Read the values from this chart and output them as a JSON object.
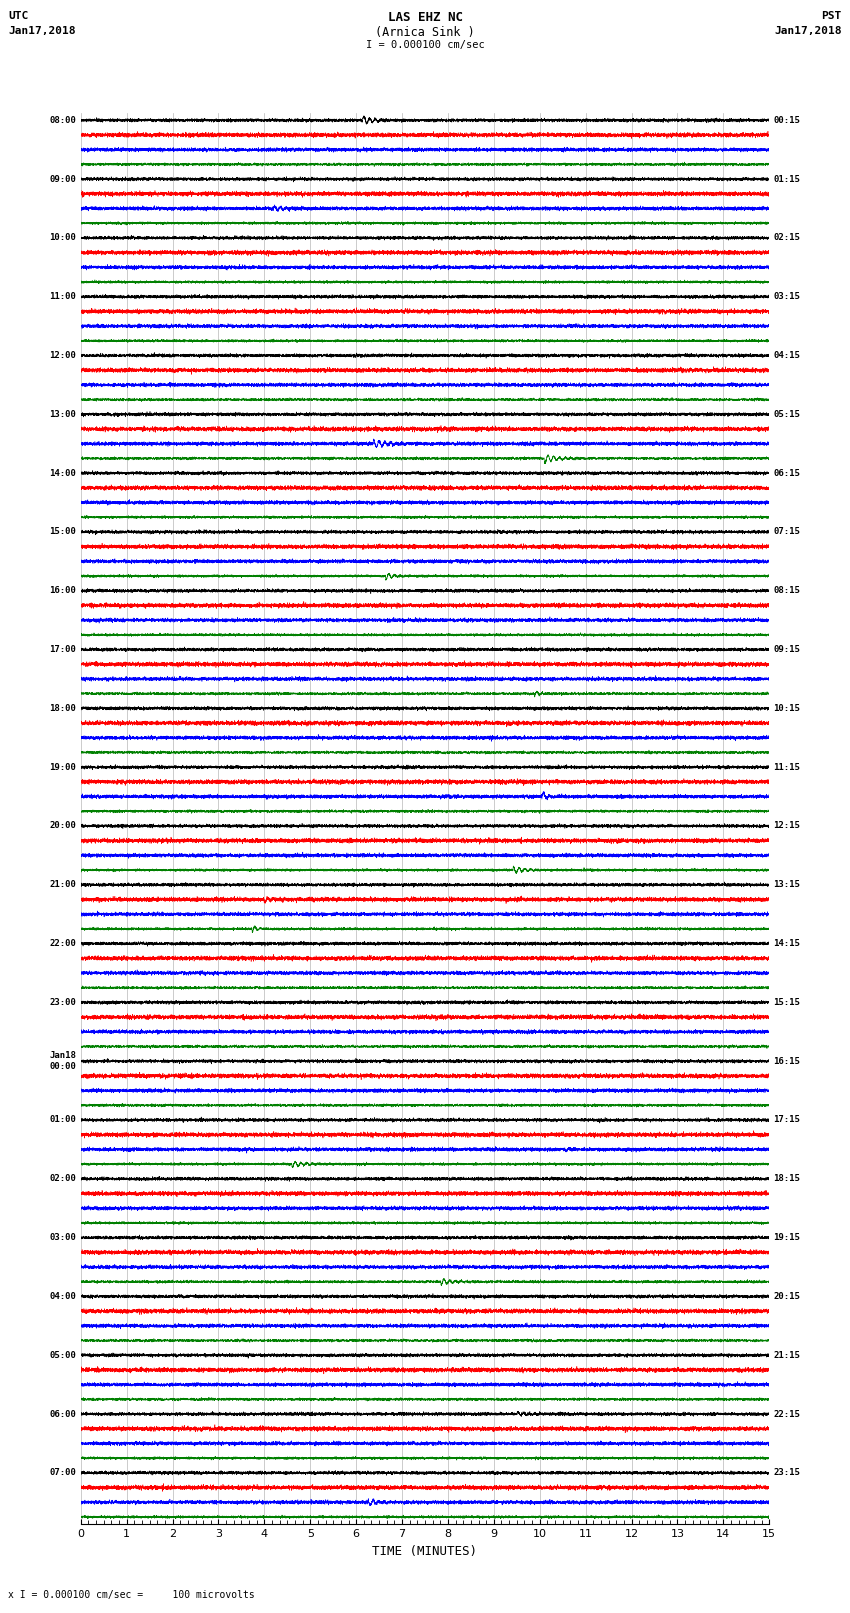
{
  "title_line1": "LAS EHZ NC",
  "title_line2": "(Arnica Sink )",
  "scale_label": "I = 0.000100 cm/sec",
  "bottom_scale_label": "x I = 0.000100 cm/sec =     100 microvolts",
  "utc_label_line1": "UTC",
  "utc_label_line2": "Jan17,2018",
  "pst_label_line1": "PST",
  "pst_label_line2": "Jan17,2018",
  "xlabel": "TIME (MINUTES)",
  "left_times_utc": [
    "08:00",
    "09:00",
    "10:00",
    "11:00",
    "12:00",
    "13:00",
    "14:00",
    "15:00",
    "16:00",
    "17:00",
    "18:00",
    "19:00",
    "20:00",
    "21:00",
    "22:00",
    "23:00",
    "Jan18\n00:00",
    "01:00",
    "02:00",
    "03:00",
    "04:00",
    "05:00",
    "06:00",
    "07:00"
  ],
  "right_times_pst": [
    "00:15",
    "01:15",
    "02:15",
    "03:15",
    "04:15",
    "05:15",
    "06:15",
    "07:15",
    "08:15",
    "09:15",
    "10:15",
    "11:15",
    "12:15",
    "13:15",
    "14:15",
    "15:15",
    "16:15",
    "17:15",
    "18:15",
    "19:15",
    "20:15",
    "21:15",
    "22:15",
    "23:15"
  ],
  "num_rows": 24,
  "traces_per_row": 4,
  "trace_colors": [
    "black",
    "red",
    "blue",
    "green"
  ],
  "background_color": "white",
  "grid_color": "#888888",
  "minutes": 15,
  "fig_width": 8.5,
  "fig_height": 16.13,
  "dpi": 100,
  "noise_amplitude": [
    0.28,
    0.38,
    0.32,
    0.22
  ],
  "font_family": "monospace"
}
